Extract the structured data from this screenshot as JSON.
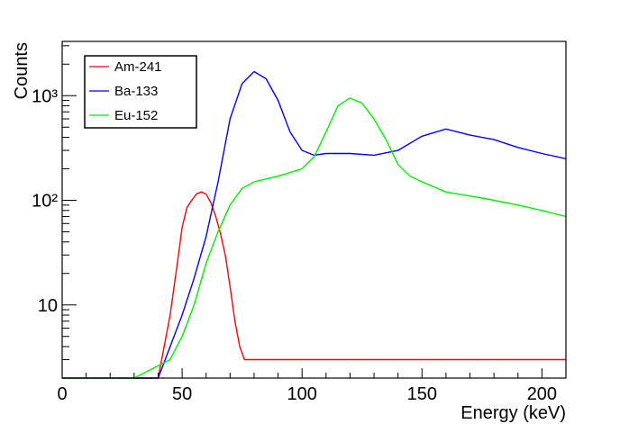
{
  "chart_data": {
    "type": "line",
    "title": "",
    "xlabel": "Energy (keV)",
    "ylabel": "Counts",
    "xlim": [
      0,
      210
    ],
    "ylim": [
      2,
      3300
    ],
    "yscale": "log",
    "x_ticks": [
      {
        "value": 0,
        "label": "0"
      },
      {
        "value": 50,
        "label": "50"
      },
      {
        "value": 100,
        "label": "100"
      },
      {
        "value": 150,
        "label": "150"
      },
      {
        "value": 200,
        "label": "200"
      }
    ],
    "y_ticks": [
      {
        "value": 10,
        "label": "10"
      },
      {
        "value": 100,
        "label": "10²"
      },
      {
        "value": 1000,
        "label": "10³"
      }
    ],
    "legend_position": "top-left",
    "series": [
      {
        "name": "Am-241",
        "color": "#ff0000",
        "x": [
          0,
          30,
          40,
          45,
          48,
          50,
          52,
          54,
          56,
          58,
          60,
          62,
          64,
          66,
          68,
          70,
          72,
          74,
          76,
          80,
          90,
          100,
          120,
          140,
          160,
          180,
          200,
          210
        ],
        "y": [
          2,
          2,
          2,
          8,
          25,
          55,
          85,
          100,
          115,
          120,
          115,
          95,
          70,
          48,
          30,
          15,
          7,
          4,
          3,
          3,
          3,
          3,
          3,
          3,
          3,
          3,
          3,
          3
        ]
      },
      {
        "name": "Ba-133",
        "color": "#0000ff",
        "x": [
          0,
          20,
          40,
          45,
          50,
          55,
          60,
          65,
          70,
          75,
          80,
          85,
          90,
          95,
          100,
          105,
          110,
          120,
          130,
          140,
          150,
          160,
          170,
          180,
          190,
          200,
          210
        ],
        "y": [
          2,
          2,
          2,
          4,
          8,
          18,
          45,
          150,
          600,
          1300,
          1700,
          1450,
          900,
          450,
          300,
          270,
          280,
          280,
          270,
          300,
          410,
          480,
          420,
          380,
          320,
          280,
          250
        ]
      },
      {
        "name": "Eu-152",
        "color": "#00ee00",
        "x": [
          0,
          30,
          45,
          50,
          55,
          60,
          65,
          70,
          75,
          80,
          90,
          100,
          105,
          110,
          115,
          120,
          125,
          130,
          135,
          140,
          145,
          150,
          160,
          170,
          180,
          190,
          200,
          210
        ],
        "y": [
          2,
          2,
          3,
          5,
          10,
          25,
          50,
          90,
          130,
          150,
          170,
          200,
          260,
          450,
          800,
          950,
          850,
          600,
          380,
          220,
          170,
          150,
          120,
          110,
          100,
          90,
          80,
          70
        ]
      }
    ]
  }
}
